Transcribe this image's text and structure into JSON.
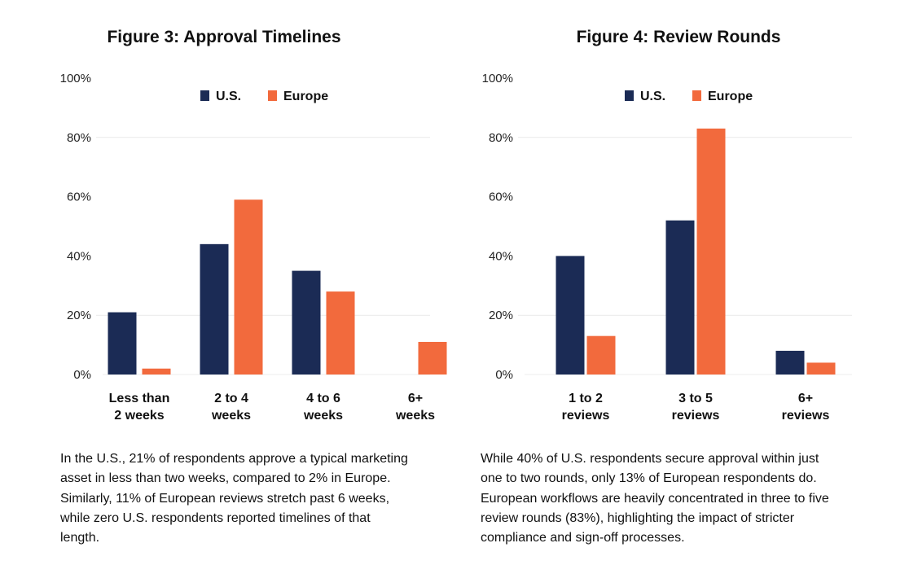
{
  "chart_data": [
    {
      "type": "bar",
      "title": "Figure 3: Approval Timelines",
      "categories": [
        [
          "Less than",
          "2 weeks"
        ],
        [
          "2 to 4",
          "weeks"
        ],
        [
          "4 to 6",
          "weeks"
        ],
        [
          "6+",
          "weeks"
        ]
      ],
      "series": [
        {
          "name": "U.S.",
          "color": "#1b2b55",
          "values": [
            21,
            44,
            35,
            0
          ]
        },
        {
          "name": "Europe",
          "color": "#f26a3d",
          "values": [
            2,
            59,
            28,
            11
          ]
        }
      ],
      "yticks": [
        "0%",
        "20%",
        "40%",
        "60%",
        "80%",
        "100%"
      ],
      "ylim": [
        0,
        100
      ],
      "grid": true,
      "legend": "top-center",
      "caption": "In the U.S., 21% of respondents approve a typical marketing asset in less than two weeks, compared to 2% in Europe. Similarly, 11% of European reviews stretch past 6 weeks, while zero U.S. respondents reported timelines of that length."
    },
    {
      "type": "bar",
      "title": "Figure 4: Review Rounds",
      "categories": [
        [
          "1 to 2",
          "reviews"
        ],
        [
          "3 to 5",
          "reviews"
        ],
        [
          "6+",
          "reviews"
        ]
      ],
      "series": [
        {
          "name": "U.S.",
          "color": "#1b2b55",
          "values": [
            40,
            52,
            8
          ]
        },
        {
          "name": "Europe",
          "color": "#f26a3d",
          "values": [
            13,
            83,
            4
          ]
        }
      ],
      "yticks": [
        "0%",
        "20%",
        "40%",
        "60%",
        "80%",
        "100%"
      ],
      "ylim": [
        0,
        100
      ],
      "grid": true,
      "legend": "top-center",
      "caption": "While 40% of U.S. respondents secure approval within just one to two rounds, only 13% of European respondents do. European workflows are heavily concentrated in three to five review rounds (83%), highlighting the impact of stricter compliance and sign-off processes."
    }
  ]
}
